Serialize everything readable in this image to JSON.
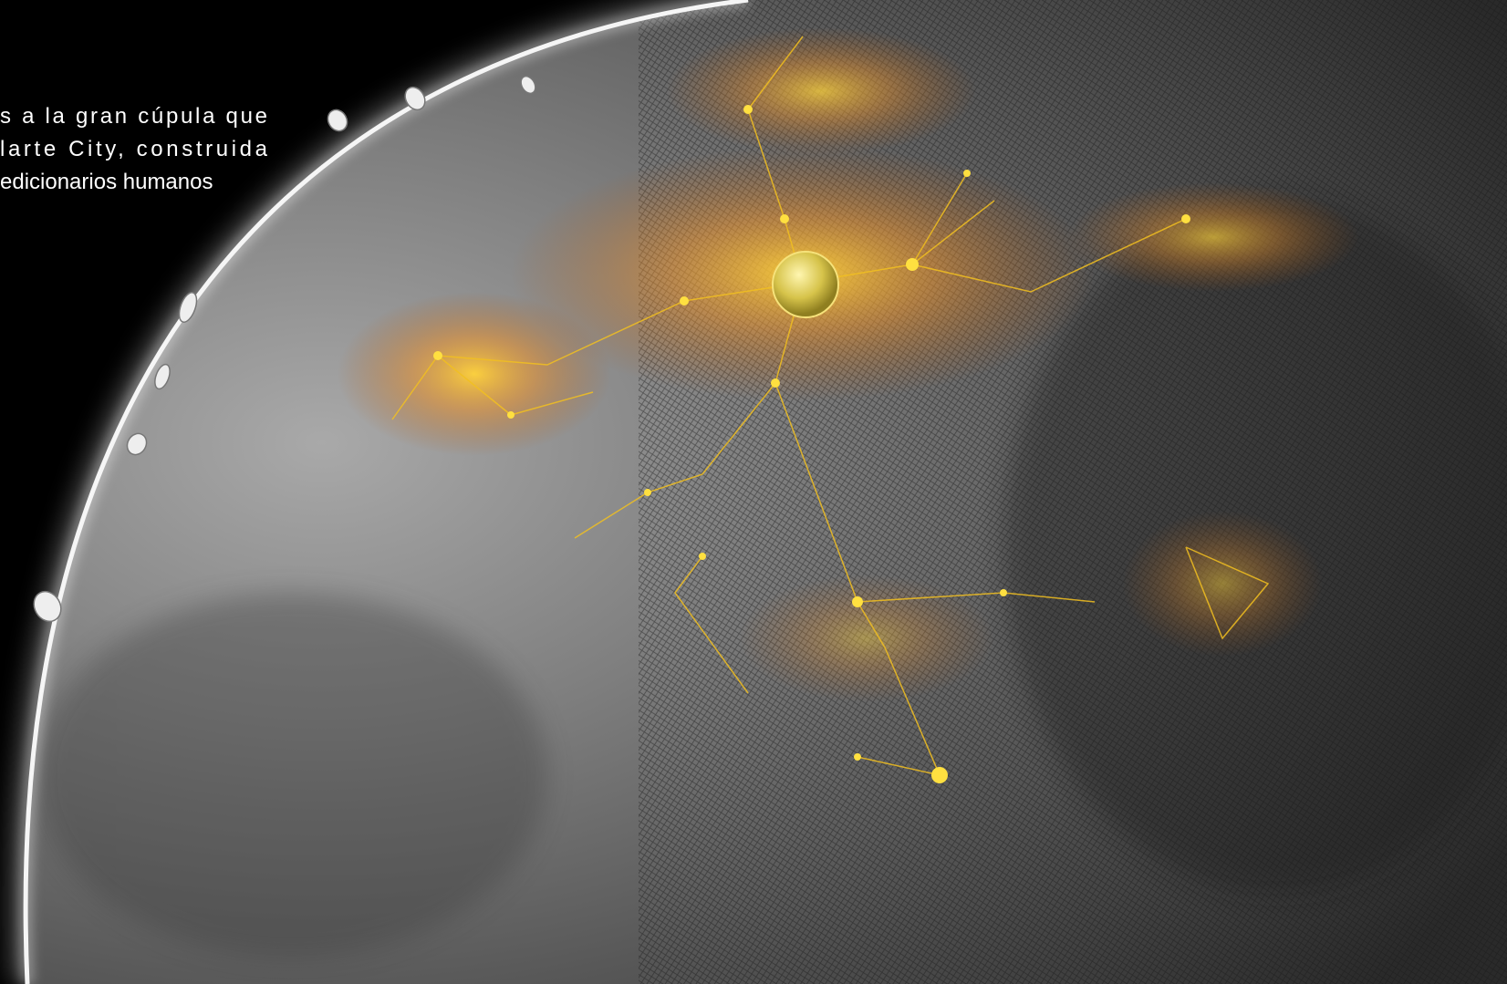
{
  "caption": {
    "lines": [
      "s a la gran cúpula que",
      "larte  City,  construida",
      "edicionarios humanos"
    ]
  }
}
